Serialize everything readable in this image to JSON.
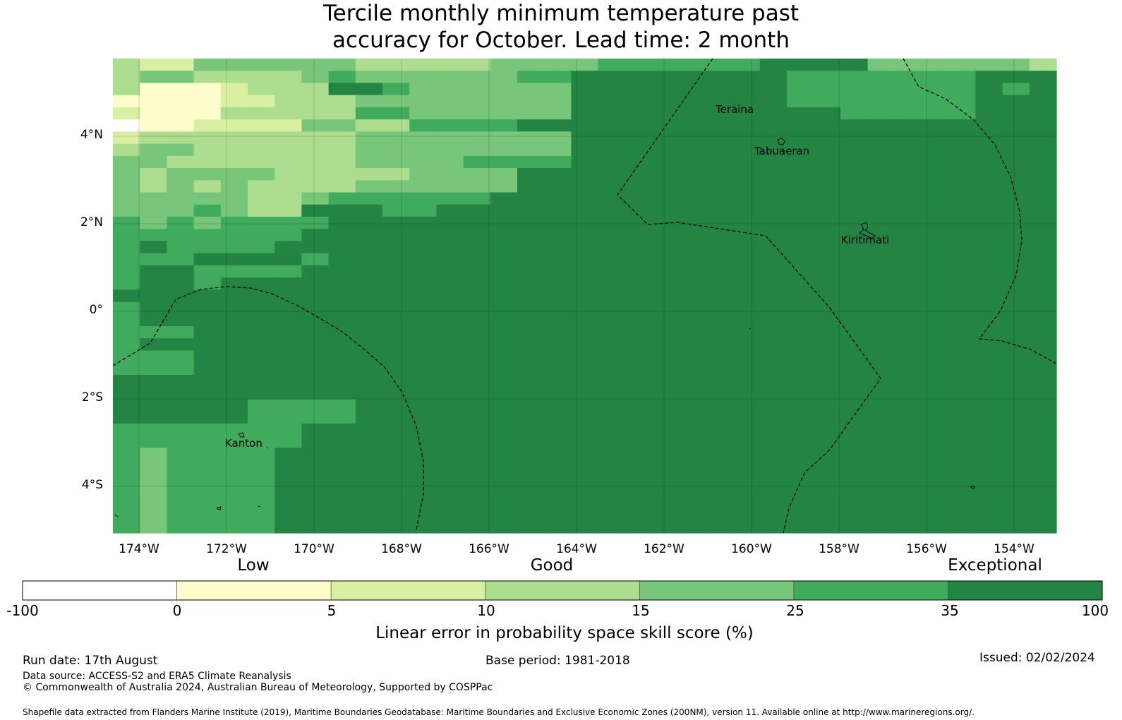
{
  "title": {
    "line1": "Tercile monthly minimum temperature past",
    "line2": "accuracy for October. Lead time: 2 month"
  },
  "map": {
    "lon_labels": [
      "174°W",
      "172°W",
      "170°W",
      "168°W",
      "166°W",
      "164°W",
      "162°W",
      "160°W",
      "158°W",
      "156°W",
      "154°W"
    ],
    "lat_labels": [
      "4°N",
      "2°N",
      "0°",
      "2°S",
      "4°S"
    ],
    "places": [
      "Teraina",
      "Tabuaeran",
      "Kiritimati",
      "Kanton"
    ]
  },
  "colorbar": {
    "categories": [
      "Low",
      "Good",
      "Exceptional"
    ],
    "ticks": [
      "-100",
      "0",
      "5",
      "10",
      "15",
      "25",
      "35",
      "100"
    ],
    "bins": [
      {
        "color": "#ffffff"
      },
      {
        "color": "#fffdcc"
      },
      {
        "color": "#d9f0a3"
      },
      {
        "color": "#addd8e"
      },
      {
        "color": "#78c679"
      },
      {
        "color": "#41ab5d"
      },
      {
        "color": "#238443"
      }
    ],
    "label": "Linear error in probability space skill score (%)"
  },
  "footer": {
    "run_date": "Run date: 17th August",
    "base_period": "Base period: 1981-2018",
    "issued": "Issued: 02/02/2024",
    "data_source": "Data source: ACCESS-S2 and ERA5 Climate Reanalysis",
    "copyright": "© Commonwealth of Australia 2024, Australian Bureau of Meteorology, Supported by COSPPac",
    "shapefile": "Shapefile data extracted from Flanders Marine Institute (2019), Maritime Boundaries Geodatabase: Maritime Boundaries and Exclusive Economic Zones (200NM), version 11. Available online at http://www.marineregions.org/."
  },
  "grid_data": {
    "legend": {
      "0": "#ffffff",
      "1": "#fffdcc",
      "2": "#d9f0a3",
      "3": "#addd8e",
      "4": "#78c679",
      "5": "#41ab5d",
      "6": "#238443"
    },
    "rows": [
      "32244444433333444455555566664444443",
      "34433334544444455666666665555555666",
      "31112333665444444666666665555555656",
      "11112233344444444666666665555555666",
      "21113333355444444666666666655555666",
      "01122224433555566666666666666666666",
      "23333333344444444666666666666666666",
      "34433333344444444666666666666666666",
      "44333333344445555666666666666666666",
      "43444433333444466666666666666666666",
      "43434333344444466666666666666666666",
      "44444334555555666666666666666666666",
      "44454336665566666666666666666666666",
      "54545555666666666666666666666666666",
      "55555556666666666666666666666666666",
      "56555566666666666666666666666666666",
      "55566665666666666666666666666666666",
      "56655556666666666666666666666666666",
      "56656666666666666666666666666666666",
      "66666666666666666666666666666666666",
      "56666666666666666666666666666666666",
      "56666666666666666666666666666666666",
      "55566666666666666666666666666666666",
      "56666666666666666666666666666666666",
      "55566666666666666666666666666666666",
      "55566666666666666666666666666666666",
      "66666666666666666666666666666666666",
      "66666666666666666666666666666666666",
      "66666555566666666666666666666666666",
      "66666555566666666666666666666666666",
      "55555556666666666666666666666666666",
      "55555556666666666666666666666666666",
      "54555566666666666666666666666666666",
      "54555566666666666666666666666666666",
      "54555566666666666666666666666666666",
      "54555566666666666666666666666666666",
      "54555566666666666666666666666666666",
      "54555566666666666666666666666666666",
      "54555566666666666666666666666666666"
    ]
  }
}
